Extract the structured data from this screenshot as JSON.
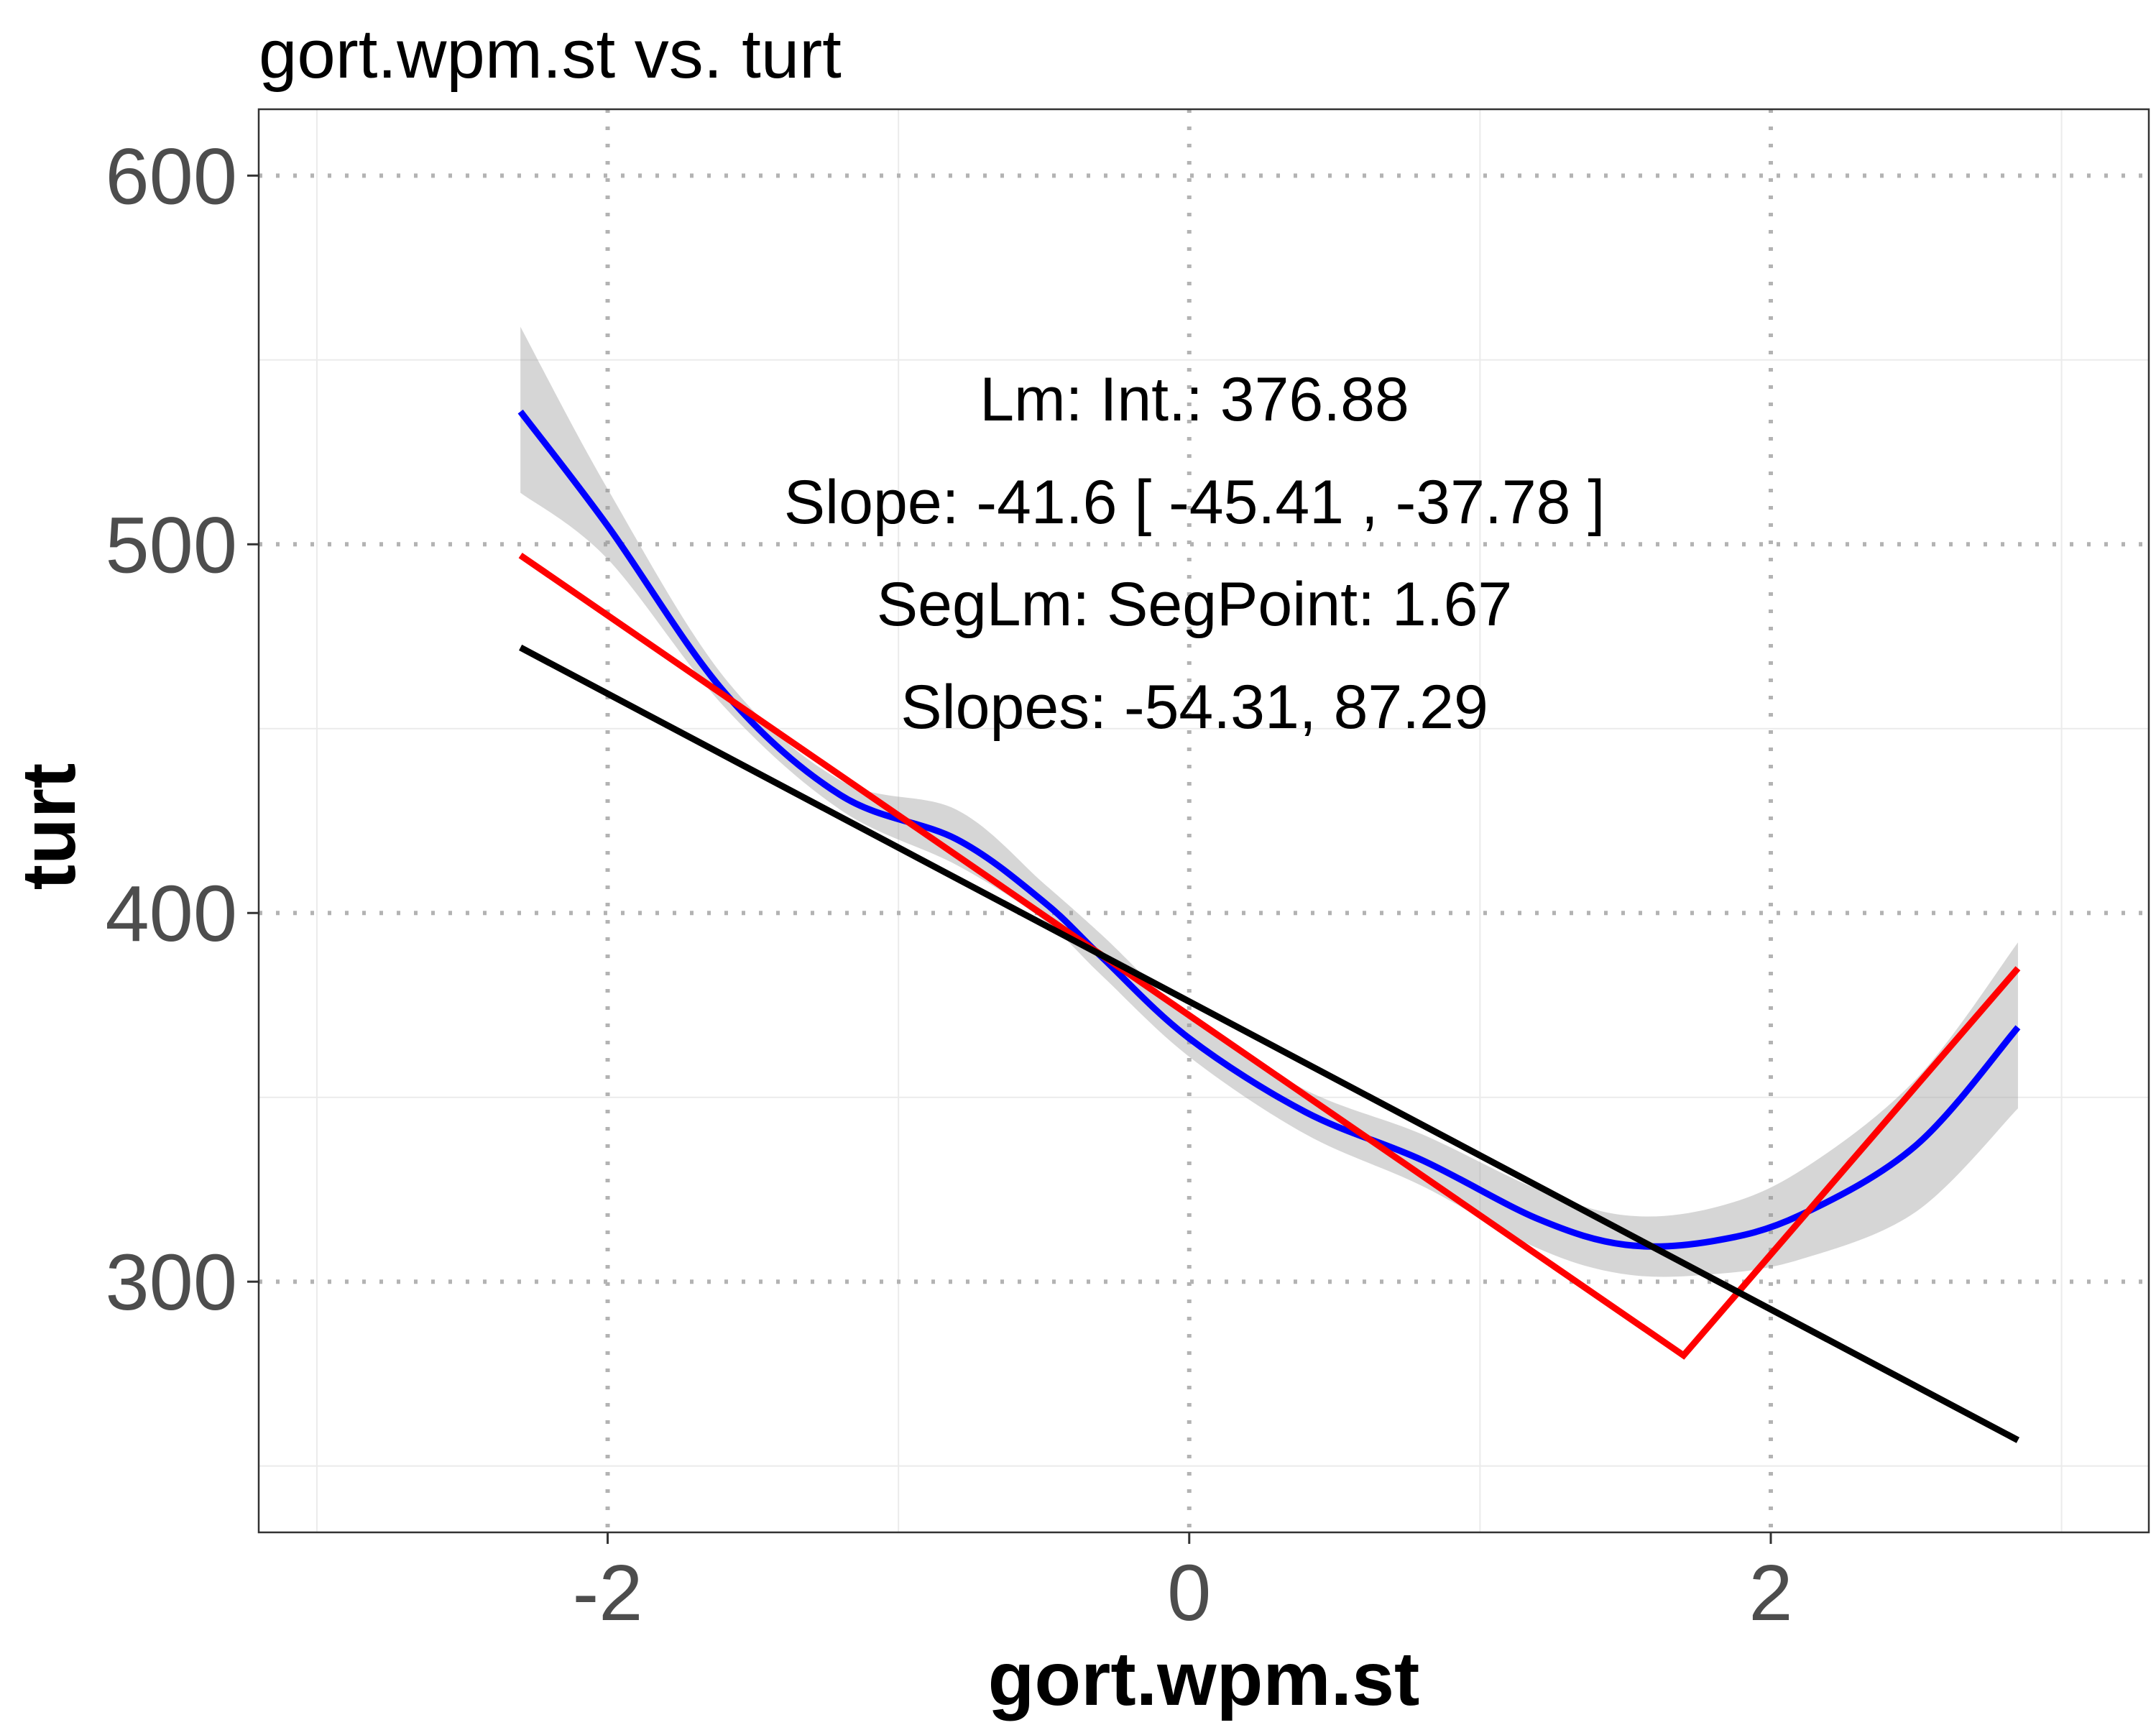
{
  "chart_data": {
    "type": "line",
    "title": "gort.wpm.st vs. turt",
    "xlabel": "gort.wpm.st",
    "ylabel": "turt",
    "xlim": [
      -3.2,
      3.3
    ],
    "ylim": [
      232,
      618
    ],
    "x_ticks": [
      -2,
      0,
      2
    ],
    "x_tick_labels": [
      "-2",
      "0",
      "2"
    ],
    "y_ticks": [
      300,
      400,
      500,
      600
    ],
    "y_tick_labels": [
      "300",
      "400",
      "500",
      "600"
    ],
    "x_minor": [
      -3,
      -1,
      1,
      3
    ],
    "y_minor": [
      250,
      350,
      450,
      550
    ],
    "grid": "major dotted grey, minor solid light grey",
    "annotations": [
      "Lm: Int.: 376.88",
      "Slope: -41.6 [ -45.41 , -37.78 ]",
      "SegLm: SegPoint: 1.67",
      "Slopes: -54.31, 87.29"
    ],
    "series": [
      {
        "kind": "smooth",
        "color": "#0000ff",
        "x": [
          -2.3,
          -2.0,
          -1.6,
          -1.2,
          -0.8,
          -0.5,
          -0.3,
          0.0,
          0.4,
          0.8,
          1.2,
          1.5,
          1.8,
          2.1,
          2.5,
          2.85
        ],
        "y": [
          536,
          505,
          460,
          432,
          420,
          403,
          388,
          366,
          346,
          333,
          317,
          310,
          311,
          318,
          337,
          369
        ],
        "band_lower": [
          514,
          496,
          456,
          428,
          413,
          398,
          383,
          361,
          340,
          326,
          309,
          302,
          302,
          306,
          319,
          347
        ],
        "band_upper": [
          559,
          515,
          464,
          436,
          428,
          408,
          394,
          372,
          352,
          340,
          325,
          318,
          320,
          330,
          355,
          392
        ]
      },
      {
        "kind": "segmented",
        "color": "#ff0000",
        "x": [
          -2.3,
          1.7,
          2.85
        ],
        "y": [
          497,
          280,
          385
        ]
      },
      {
        "kind": "linear",
        "color": "#000000",
        "x": [
          -2.3,
          2.85
        ],
        "y": [
          472,
          257
        ]
      }
    ]
  }
}
